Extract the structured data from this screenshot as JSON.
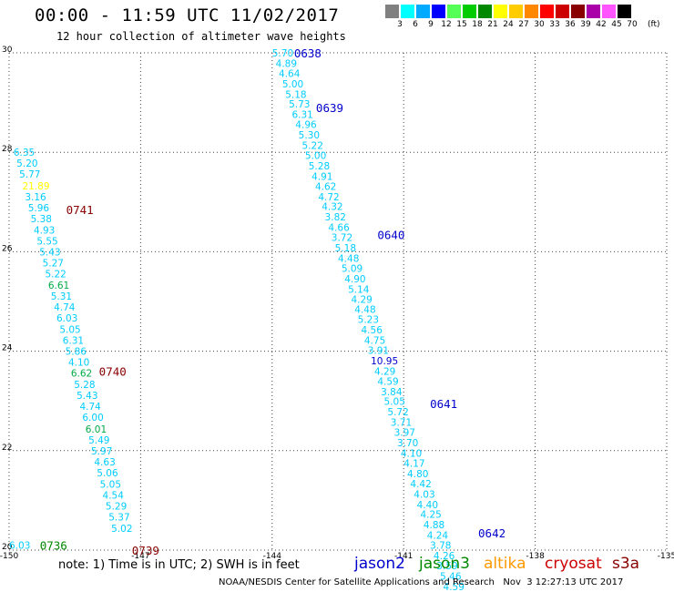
{
  "header": {
    "title": "00:00 - 11:59 UTC 11/02/2017",
    "subtitle": "12 hour collection of altimeter wave heights"
  },
  "colorbar": {
    "unit": "(ft)",
    "swatches": [
      {
        "label": "3",
        "color": "#808080"
      },
      {
        "label": "6",
        "color": "#00ffff"
      },
      {
        "label": "9",
        "color": "#00aaff"
      },
      {
        "label": "12",
        "color": "#0000ff"
      },
      {
        "label": "15",
        "color": "#55ff55"
      },
      {
        "label": "18",
        "color": "#00cc00"
      },
      {
        "label": "21",
        "color": "#008800"
      },
      {
        "label": "24",
        "color": "#ffff00"
      },
      {
        "label": "27",
        "color": "#ffcc00"
      },
      {
        "label": "30",
        "color": "#ff8800"
      },
      {
        "label": "33",
        "color": "#ff0000"
      },
      {
        "label": "36",
        "color": "#cc0000"
      },
      {
        "label": "39",
        "color": "#880000"
      },
      {
        "label": "42",
        "color": "#aa00aa"
      },
      {
        "label": "45",
        "color": "#ff55ff"
      },
      {
        "label": "70",
        "color": "#000000"
      }
    ]
  },
  "footer": {
    "note": "note: 1) Time is in UTC; 2) SWH is in feet",
    "satellites": [
      {
        "name": "jason2",
        "color": "#0000cc"
      },
      {
        "name": "jason3",
        "color": "#008800"
      },
      {
        "name": "altika",
        "color": "#ff9900"
      },
      {
        "name": "cryosat",
        "color": "#cc0000"
      },
      {
        "name": "s3a",
        "color": "#880000"
      }
    ],
    "credit": "NOAA/NESDIS Center for Satellite Applications and Research   Nov  3 12:27:13 UTC 2017"
  },
  "chart_data": {
    "type": "scatter",
    "xlim": [
      -150,
      -135
    ],
    "ylim": [
      20,
      30
    ],
    "x_ticks": [
      "-150",
      "-147",
      "-144",
      "-141",
      "-138",
      "-135"
    ],
    "y_ticks": [
      "20",
      "22",
      "24",
      "26",
      "28",
      "30"
    ],
    "grid": true,
    "tracks": [
      {
        "points": [
          {
            "x": -144.0,
            "y": 30.0,
            "label": "5.70",
            "color": "#00ccff"
          },
          {
            "x": -143.92,
            "y": 29.79,
            "label": "4.89",
            "color": "#00ccff"
          },
          {
            "x": -143.85,
            "y": 29.59,
            "label": "4.64",
            "color": "#00ccff"
          },
          {
            "x": -143.77,
            "y": 29.38,
            "label": "5.00",
            "color": "#00ccff"
          },
          {
            "x": -143.7,
            "y": 29.17,
            "label": "5.18",
            "color": "#00ccff"
          },
          {
            "x": -143.62,
            "y": 28.97,
            "label": "5.73",
            "color": "#00ccff"
          },
          {
            "x": -143.55,
            "y": 28.76,
            "label": "6.31",
            "color": "#00ccff"
          },
          {
            "x": -143.47,
            "y": 28.56,
            "label": "4.96",
            "color": "#00ccff"
          },
          {
            "x": -143.4,
            "y": 28.35,
            "label": "5.30",
            "color": "#00ccff"
          },
          {
            "x": -143.32,
            "y": 28.14,
            "label": "5.22",
            "color": "#00ccff"
          },
          {
            "x": -143.25,
            "y": 27.94,
            "label": "5.00",
            "color": "#00ccff"
          },
          {
            "x": -143.17,
            "y": 27.73,
            "label": "5.28",
            "color": "#00ccff"
          },
          {
            "x": -143.1,
            "y": 27.52,
            "label": "4.91",
            "color": "#00ccff"
          },
          {
            "x": -143.02,
            "y": 27.32,
            "label": "4.62",
            "color": "#00ccff"
          },
          {
            "x": -142.95,
            "y": 27.11,
            "label": "4.72",
            "color": "#00ccff"
          },
          {
            "x": -142.87,
            "y": 26.91,
            "label": "4.32",
            "color": "#00ccff"
          },
          {
            "x": -142.8,
            "y": 26.7,
            "label": "3.82",
            "color": "#00ccff"
          },
          {
            "x": -142.72,
            "y": 26.49,
            "label": "4.66",
            "color": "#00ccff"
          },
          {
            "x": -142.65,
            "y": 26.29,
            "label": "3.72",
            "color": "#00ccff"
          },
          {
            "x": -142.57,
            "y": 26.08,
            "label": "5.18",
            "color": "#00ccff"
          },
          {
            "x": -142.5,
            "y": 25.87,
            "label": "4.48",
            "color": "#00ccff"
          },
          {
            "x": -142.42,
            "y": 25.67,
            "label": "5.09",
            "color": "#00ccff"
          },
          {
            "x": -142.35,
            "y": 25.46,
            "label": "4.90",
            "color": "#00ccff"
          },
          {
            "x": -142.27,
            "y": 25.25,
            "label": "5.14",
            "color": "#00ccff"
          },
          {
            "x": -142.2,
            "y": 25.05,
            "label": "4.29",
            "color": "#00ccff"
          },
          {
            "x": -142.12,
            "y": 24.84,
            "label": "4.48",
            "color": "#00ccff"
          },
          {
            "x": -142.05,
            "y": 24.64,
            "label": "5.23",
            "color": "#00ccff"
          },
          {
            "x": -141.97,
            "y": 24.43,
            "label": "4.56",
            "color": "#00ccff"
          },
          {
            "x": -141.9,
            "y": 24.22,
            "label": "4.75",
            "color": "#00ccff"
          },
          {
            "x": -141.82,
            "y": 24.02,
            "label": "3.91",
            "color": "#00ccff"
          },
          {
            "x": -141.75,
            "y": 23.81,
            "label": "10.95",
            "color": "#0000cc"
          },
          {
            "x": -141.67,
            "y": 23.6,
            "label": "4.29",
            "color": "#00ccff"
          },
          {
            "x": -141.6,
            "y": 23.4,
            "label": "4.59",
            "color": "#00ccff"
          },
          {
            "x": -141.52,
            "y": 23.19,
            "label": "3.84",
            "color": "#00ccff"
          },
          {
            "x": -141.45,
            "y": 22.99,
            "label": "5.05",
            "color": "#00ccff"
          },
          {
            "x": -141.37,
            "y": 22.78,
            "label": "5.72",
            "color": "#00ccff"
          },
          {
            "x": -141.3,
            "y": 22.57,
            "label": "3.71",
            "color": "#00ccff"
          },
          {
            "x": -141.22,
            "y": 22.37,
            "label": "3.97",
            "color": "#00ccff"
          },
          {
            "x": -141.15,
            "y": 22.16,
            "label": "3.70",
            "color": "#00ccff"
          },
          {
            "x": -141.07,
            "y": 21.95,
            "label": "4.10",
            "color": "#00ccff"
          },
          {
            "x": -141.0,
            "y": 21.75,
            "label": "4.17",
            "color": "#00ccff"
          },
          {
            "x": -140.92,
            "y": 21.54,
            "label": "4.80",
            "color": "#00ccff"
          },
          {
            "x": -140.85,
            "y": 21.34,
            "label": "4.42",
            "color": "#00ccff"
          },
          {
            "x": -140.77,
            "y": 21.13,
            "label": "4.03",
            "color": "#00ccff"
          },
          {
            "x": -140.7,
            "y": 20.92,
            "label": "4.40",
            "color": "#00ccff"
          },
          {
            "x": -140.62,
            "y": 20.72,
            "label": "4.25",
            "color": "#00ccff"
          },
          {
            "x": -140.55,
            "y": 20.51,
            "label": "4.88",
            "color": "#00ccff"
          },
          {
            "x": -140.47,
            "y": 20.3,
            "label": "4.24",
            "color": "#00ccff"
          },
          {
            "x": -140.4,
            "y": 20.1,
            "label": "3.78",
            "color": "#00ccff"
          },
          {
            "x": -140.32,
            "y": 19.89,
            "label": "4.26",
            "color": "#00ccff"
          },
          {
            "x": -140.25,
            "y": 19.69,
            "label": "3.59",
            "color": "#00ccff"
          },
          {
            "x": -140.17,
            "y": 19.48,
            "label": "5.46",
            "color": "#00ccff"
          },
          {
            "x": -140.1,
            "y": 19.27,
            "label": "4.59",
            "color": "#00ccff"
          }
        ]
      },
      {
        "points": [
          {
            "x": -149.9,
            "y": 28.0,
            "label": "6.35",
            "color": "#00ccff"
          },
          {
            "x": -149.83,
            "y": 27.78,
            "label": "5.20",
            "color": "#00ccff"
          },
          {
            "x": -149.77,
            "y": 27.56,
            "label": "5.77",
            "color": "#00ccff"
          },
          {
            "x": -149.7,
            "y": 27.33,
            "label": "21.89",
            "color": "#ffff00"
          },
          {
            "x": -149.64,
            "y": 27.11,
            "label": "3.16",
            "color": "#00ccff"
          },
          {
            "x": -149.57,
            "y": 26.89,
            "label": "5.96",
            "color": "#00ccff"
          },
          {
            "x": -149.51,
            "y": 26.67,
            "label": "5.38",
            "color": "#00ccff"
          },
          {
            "x": -149.44,
            "y": 26.44,
            "label": "4.93",
            "color": "#00ccff"
          },
          {
            "x": -149.37,
            "y": 26.22,
            "label": "5.55",
            "color": "#00ccff"
          },
          {
            "x": -149.31,
            "y": 26.0,
            "label": "5.43",
            "color": "#00ccff"
          },
          {
            "x": -149.24,
            "y": 25.78,
            "label": "5.27",
            "color": "#00ccff"
          },
          {
            "x": -149.18,
            "y": 25.56,
            "label": "5.22",
            "color": "#00ccff"
          },
          {
            "x": -149.11,
            "y": 25.33,
            "label": "6.61",
            "color": "#00aa44"
          },
          {
            "x": -149.05,
            "y": 25.11,
            "label": "5.31",
            "color": "#00ccff"
          },
          {
            "x": -148.98,
            "y": 24.89,
            "label": "4.74",
            "color": "#00ccff"
          },
          {
            "x": -148.92,
            "y": 24.67,
            "label": "6.03",
            "color": "#00ccff"
          },
          {
            "x": -148.85,
            "y": 24.44,
            "label": "5.05",
            "color": "#00ccff"
          },
          {
            "x": -148.78,
            "y": 24.22,
            "label": "6.31",
            "color": "#00ccff"
          },
          {
            "x": -148.72,
            "y": 24.0,
            "label": "5.86",
            "color": "#00ccff"
          },
          {
            "x": -148.65,
            "y": 23.78,
            "label": "4.10",
            "color": "#00ccff"
          },
          {
            "x": -148.59,
            "y": 23.56,
            "label": "6.62",
            "color": "#00aa44"
          },
          {
            "x": -148.52,
            "y": 23.33,
            "label": "5.28",
            "color": "#00ccff"
          },
          {
            "x": -148.46,
            "y": 23.11,
            "label": "5.43",
            "color": "#00ccff"
          },
          {
            "x": -148.39,
            "y": 22.89,
            "label": "4.74",
            "color": "#00ccff"
          },
          {
            "x": -148.33,
            "y": 22.67,
            "label": "6.00",
            "color": "#00ccff"
          },
          {
            "x": -148.26,
            "y": 22.44,
            "label": "6.01",
            "color": "#00aa44"
          },
          {
            "x": -148.19,
            "y": 22.22,
            "label": "5.49",
            "color": "#00ccff"
          },
          {
            "x": -148.13,
            "y": 22.0,
            "label": "5.97",
            "color": "#00ccff"
          },
          {
            "x": -148.06,
            "y": 21.78,
            "label": "4.63",
            "color": "#00ccff"
          },
          {
            "x": -148.0,
            "y": 21.56,
            "label": "5.06",
            "color": "#00ccff"
          },
          {
            "x": -147.93,
            "y": 21.33,
            "label": "5.05",
            "color": "#00ccff"
          },
          {
            "x": -147.87,
            "y": 21.11,
            "label": "4.54",
            "color": "#00ccff"
          },
          {
            "x": -147.8,
            "y": 20.89,
            "label": "5.29",
            "color": "#00ccff"
          },
          {
            "x": -147.73,
            "y": 20.67,
            "label": "5.37",
            "color": "#00ccff"
          },
          {
            "x": -147.67,
            "y": 20.44,
            "label": "5.02",
            "color": "#00ccff"
          },
          {
            "x": -150.0,
            "y": 20.1,
            "label": "6.03",
            "color": "#00ccff"
          }
        ]
      }
    ],
    "annotations": [
      {
        "x": -143.5,
        "y": 30.0,
        "label": "0638",
        "color": "#0000cc"
      },
      {
        "x": -143.0,
        "y": 28.9,
        "label": "0639",
        "color": "#0000cc"
      },
      {
        "x": -141.6,
        "y": 26.35,
        "label": "0640",
        "color": "#0000cc"
      },
      {
        "x": -140.4,
        "y": 22.95,
        "label": "0641",
        "color": "#0000cc"
      },
      {
        "x": -139.3,
        "y": 20.35,
        "label": "0642",
        "color": "#0000cc"
      },
      {
        "x": -148.7,
        "y": 26.85,
        "label": "0741",
        "color": "#880000"
      },
      {
        "x": -147.95,
        "y": 23.6,
        "label": "0740",
        "color": "#880000"
      },
      {
        "x": -149.3,
        "y": 20.1,
        "label": "0736",
        "color": "#008800"
      },
      {
        "x": -147.2,
        "y": 20.0,
        "label": "0739",
        "color": "#880000"
      }
    ]
  }
}
